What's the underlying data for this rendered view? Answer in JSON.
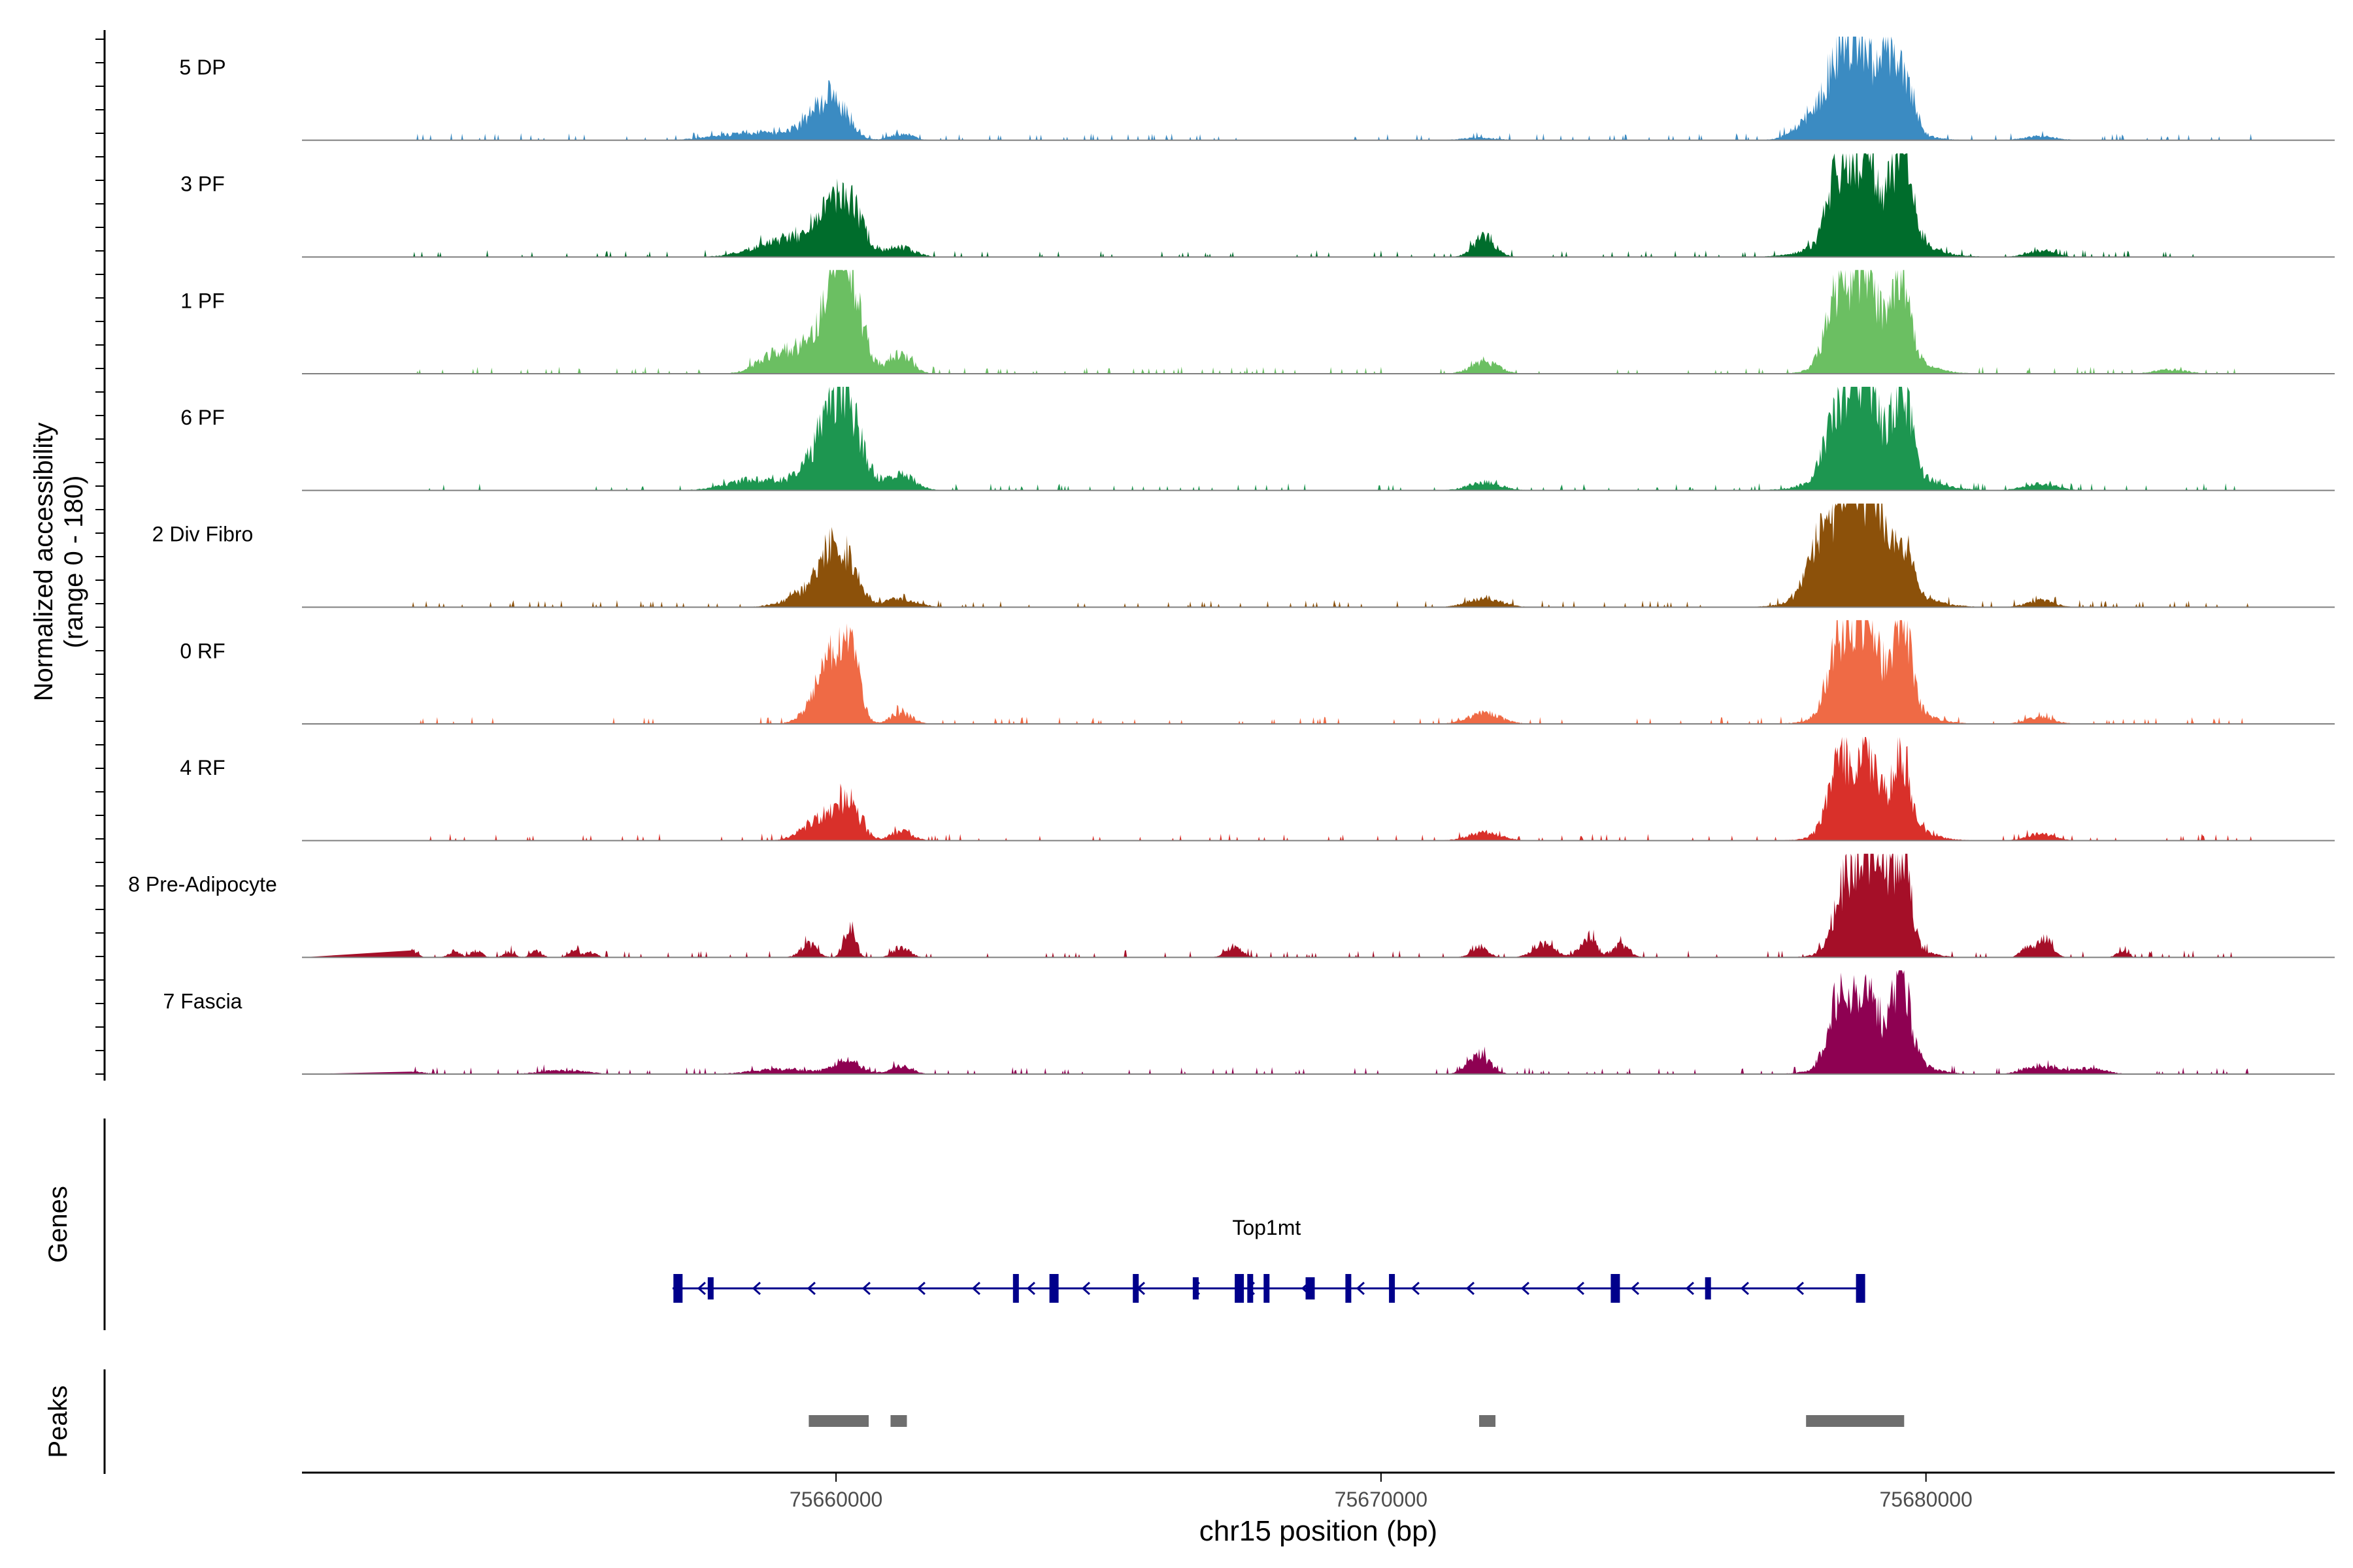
{
  "chart_data": {
    "type": "area",
    "title": "",
    "xlabel": "chr15 position (bp)",
    "ylabel_line1": "Normalized accessibility",
    "ylabel_line2": "(range 0 - 180)",
    "y_range": [
      0,
      180
    ],
    "x_range": [
      75650200,
      75687500
    ],
    "x_ticks": [
      75660000,
      75670000,
      75680000
    ],
    "x_tick_labels": [
      "75660000",
      "75670000",
      "75680000"
    ],
    "track_labels": {
      "genes": "Genes",
      "peaks": "Peaks"
    },
    "tracks": [
      {
        "name": "5 DP",
        "color": "#3B8BC2",
        "peaks": [
          [
            75658600,
            6,
            700
          ],
          [
            75659700,
            17,
            300
          ],
          [
            75660000,
            20,
            250
          ],
          [
            75661200,
            5,
            200
          ],
          [
            75671800,
            2,
            300
          ],
          [
            75677900,
            12,
            300
          ],
          [
            75678400,
            46,
            220
          ],
          [
            75678800,
            50,
            200
          ],
          [
            75679250,
            55,
            120
          ],
          [
            75679600,
            38,
            160
          ],
          [
            75678900,
            20,
            600
          ],
          [
            75682100,
            3,
            300
          ]
        ]
      },
      {
        "name": "3 PF",
        "color": "#006D2C",
        "peaks": [
          [
            75659200,
            14,
            600
          ],
          [
            75660000,
            32,
            300
          ],
          [
            75660300,
            20,
            250
          ],
          [
            75661200,
            7,
            250
          ],
          [
            75671900,
            15,
            200
          ],
          [
            75678400,
            52,
            200
          ],
          [
            75678900,
            58,
            200
          ],
          [
            75679550,
            65,
            180
          ],
          [
            75679000,
            22,
            700
          ],
          [
            75682100,
            5,
            250
          ]
        ]
      },
      {
        "name": "1 PF",
        "color": "#6BBF62",
        "peaks": [
          [
            75658800,
            10,
            300
          ],
          [
            75659800,
            30,
            500
          ],
          [
            75660000,
            65,
            180
          ],
          [
            75660300,
            40,
            200
          ],
          [
            75661200,
            14,
            200
          ],
          [
            75671900,
            9,
            250
          ],
          [
            75678400,
            50,
            220
          ],
          [
            75678900,
            55,
            200
          ],
          [
            75679550,
            60,
            150
          ],
          [
            75679100,
            22,
            600
          ],
          [
            75684500,
            3,
            300
          ]
        ]
      },
      {
        "name": "6 PF",
        "color": "#1D9650",
        "peaks": [
          [
            75658500,
            8,
            500
          ],
          [
            75659800,
            25,
            400
          ],
          [
            75660000,
            38,
            250
          ],
          [
            75660300,
            30,
            250
          ],
          [
            75661200,
            12,
            250
          ],
          [
            75671900,
            6,
            300
          ],
          [
            75678400,
            50,
            220
          ],
          [
            75678900,
            62,
            200
          ],
          [
            75679550,
            60,
            170
          ],
          [
            75679050,
            24,
            700
          ],
          [
            75682100,
            5,
            300
          ]
        ]
      },
      {
        "name": "2 Div Fibro",
        "color": "#8C510A",
        "peaks": [
          [
            75659500,
            10,
            400
          ],
          [
            75659900,
            28,
            250
          ],
          [
            75660200,
            24,
            250
          ],
          [
            75661200,
            6,
            300
          ],
          [
            75671900,
            7,
            300
          ],
          [
            75678100,
            40,
            250
          ],
          [
            75678600,
            80,
            200
          ],
          [
            75679100,
            55,
            200
          ],
          [
            75679600,
            30,
            150
          ],
          [
            75678900,
            25,
            700
          ],
          [
            75682100,
            5,
            250
          ]
        ]
      },
      {
        "name": "0 RF",
        "color": "#EF6A45",
        "peaks": [
          [
            75659800,
            22,
            300
          ],
          [
            75660000,
            30,
            250
          ],
          [
            75660300,
            35,
            150
          ],
          [
            75661200,
            8,
            200
          ],
          [
            75671900,
            8,
            300
          ],
          [
            75678400,
            52,
            200
          ],
          [
            75678900,
            60,
            200
          ],
          [
            75679550,
            68,
            160
          ],
          [
            75679100,
            22,
            600
          ],
          [
            75682100,
            5,
            250
          ]
        ]
      },
      {
        "name": "4 RF",
        "color": "#D9302A",
        "peaks": [
          [
            75659800,
            18,
            350
          ],
          [
            75660250,
            22,
            200
          ],
          [
            75661200,
            7,
            200
          ],
          [
            75671900,
            6,
            300
          ],
          [
            75678400,
            45,
            200
          ],
          [
            75678900,
            50,
            200
          ],
          [
            75679550,
            52,
            160
          ],
          [
            75679100,
            18,
            600
          ],
          [
            75682100,
            5,
            250
          ]
        ]
      },
      {
        "name": "8 Pre-Adipocyte",
        "color": "#A50F28",
        "peaks": [
          [
            75652200,
            6,
            100
          ],
          [
            75653000,
            5,
            100
          ],
          [
            75653400,
            5,
            100
          ],
          [
            75654000,
            4,
            100
          ],
          [
            75654500,
            5,
            100
          ],
          [
            75655200,
            5,
            100
          ],
          [
            75655500,
            4,
            100
          ],
          [
            75659500,
            10,
            150
          ],
          [
            75660250,
            25,
            100
          ],
          [
            75661200,
            8,
            150
          ],
          [
            75667300,
            8,
            150
          ],
          [
            75671800,
            8,
            150
          ],
          [
            75673000,
            10,
            200
          ],
          [
            75673800,
            15,
            150
          ],
          [
            75674400,
            10,
            150
          ],
          [
            75678500,
            40,
            200
          ],
          [
            75678900,
            55,
            180
          ],
          [
            75679300,
            40,
            150
          ],
          [
            75679600,
            65,
            120
          ],
          [
            75679100,
            25,
            500
          ],
          [
            75681800,
            5,
            100
          ],
          [
            75682150,
            15,
            150
          ],
          [
            75683600,
            5,
            100
          ]
        ]
      },
      {
        "name": "7 Fascia",
        "color": "#8E0152",
        "peaks": [
          [
            75652000,
            3,
            300
          ],
          [
            75655000,
            3,
            400
          ],
          [
            75659000,
            4,
            500
          ],
          [
            75660200,
            10,
            250
          ],
          [
            75661200,
            6,
            200
          ],
          [
            75671800,
            14,
            200
          ],
          [
            75678400,
            45,
            200
          ],
          [
            75678900,
            48,
            200
          ],
          [
            75679550,
            60,
            160
          ],
          [
            75679100,
            20,
            600
          ],
          [
            75682100,
            6,
            300
          ],
          [
            75683000,
            4,
            300
          ]
        ]
      }
    ],
    "gene": {
      "name": "Top1mt",
      "start": 75657000,
      "end": 75678800,
      "strand": "-",
      "exons": [
        75657100,
        75657700,
        75663300,
        75664000,
        75665500,
        75666600,
        75667400,
        75667600,
        75667900,
        75668700,
        75669400,
        75670200,
        75674300,
        75676000,
        75678800
      ]
    },
    "peaks": [
      [
        75659500,
        75660600
      ],
      [
        75661000,
        75661300
      ],
      [
        75671800,
        75672100
      ],
      [
        75677800,
        75679600
      ]
    ]
  }
}
